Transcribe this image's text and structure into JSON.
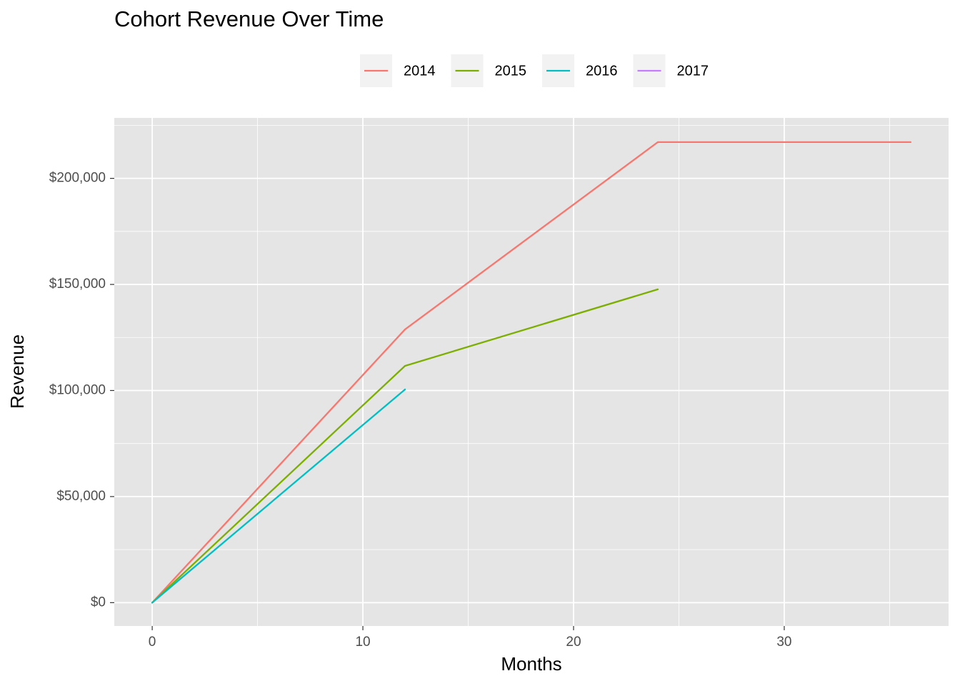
{
  "chart_data": {
    "type": "line",
    "title": "Cohort Revenue Over Time",
    "x_label": "Months",
    "y_label": "Revenue",
    "x": [
      0,
      12,
      24,
      36
    ],
    "series": [
      {
        "name": "2014",
        "color": "#F8766D",
        "values": [
          0,
          128800,
          217100,
          217100
        ]
      },
      {
        "name": "2015",
        "color": "#7CAE00",
        "values": [
          0,
          111600,
          147700,
          null
        ]
      },
      {
        "name": "2016",
        "color": "#00BFC4",
        "values": [
          0,
          100500,
          null,
          null
        ]
      },
      {
        "name": "2017",
        "color": "#C77CFF",
        "values": [
          0,
          null,
          null,
          null
        ]
      }
    ],
    "xlim": [
      -1.8,
      37.8
    ],
    "ylim": [
      -11000,
      228500
    ],
    "xticks": [
      0,
      10,
      20,
      30
    ],
    "yticks": [
      {
        "value": 0,
        "label": "$0"
      },
      {
        "value": 50000,
        "label": "$50,000"
      },
      {
        "value": 100000,
        "label": "$100,000"
      },
      {
        "value": 150000,
        "label": "$150,000"
      },
      {
        "value": 200000,
        "label": "$200,000"
      }
    ],
    "x_minor_ticks": [
      5,
      15,
      25,
      35
    ],
    "y_minor_ticks": [
      25000,
      75000,
      125000,
      175000,
      225000
    ],
    "grid": true,
    "legend": "top"
  }
}
